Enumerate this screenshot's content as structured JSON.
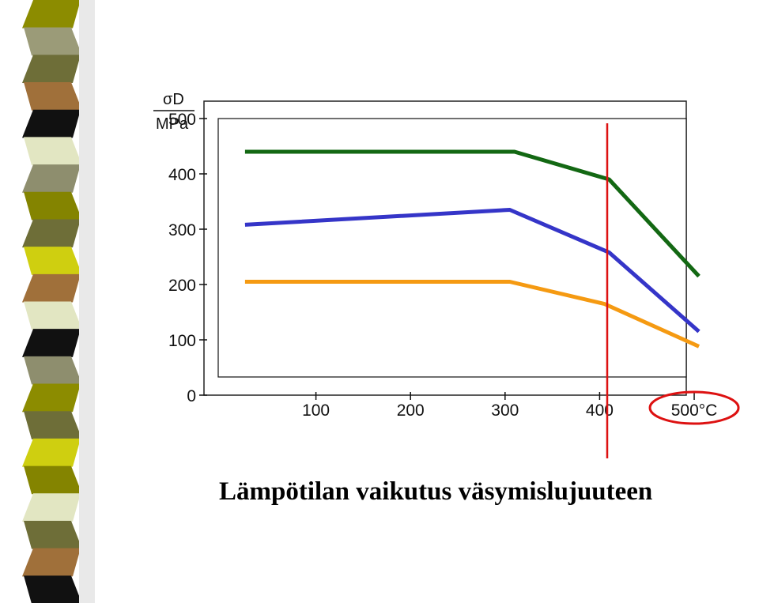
{
  "slide": {
    "title": "Lämpötilan vaikutus väsymislujuuteen"
  },
  "colors": {
    "stripe": [
      "#8c8c00",
      "#9b9b78",
      "#6e6e38",
      "#a0703a",
      "#111111",
      "#e2e6c2",
      "#8e8e6e",
      "#848400",
      "#6e6e38",
      "#cfcf10",
      "#a0703a",
      "#e2e6c2",
      "#111111",
      "#8e8e6e",
      "#8c8c00",
      "#6e6e38",
      "#cfcf10",
      "#848400",
      "#e2e6c2",
      "#6e6e38",
      "#a0703a",
      "#111111"
    ],
    "marker_line": "#dd1111",
    "marker_circle": "#dd1111"
  },
  "chart_data": {
    "type": "line",
    "ylabel_top": "σD",
    "ylabel_bottom": "MPa",
    "xlabel_unit": "°C",
    "xlim": [
      0,
      510
    ],
    "ylim": [
      0,
      520
    ],
    "x_ticks": [
      100,
      200,
      300,
      400,
      500
    ],
    "x_tick_labels": [
      "100",
      "200",
      "300",
      "400",
      "500°C"
    ],
    "y_ticks": [
      0,
      100,
      200,
      300,
      400,
      500
    ],
    "y_tick_labels": [
      "0",
      "100",
      "200",
      "300",
      "400",
      "500"
    ],
    "series": [
      {
        "color": "#136813",
        "x": [
          25,
          310,
          410,
          505
        ],
        "y": [
          440,
          440,
          390,
          215
        ]
      },
      {
        "color": "#3535c8",
        "x": [
          25,
          305,
          410,
          505
        ],
        "y": [
          308,
          335,
          258,
          115
        ]
      },
      {
        "color": "#f59a12",
        "x": [
          25,
          305,
          405,
          505
        ],
        "y": [
          205,
          205,
          165,
          88
        ]
      }
    ],
    "marker_x": 408,
    "highlighted_tick": "500°C"
  }
}
